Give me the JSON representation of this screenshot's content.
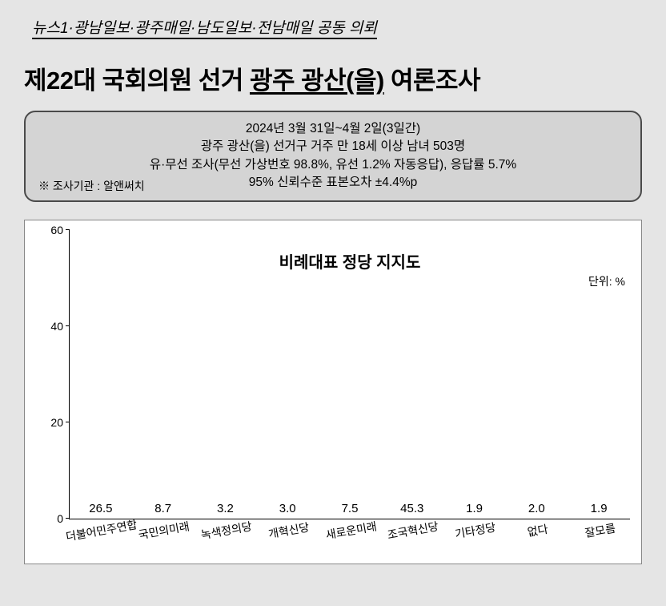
{
  "source_line": "뉴스1·광남일보·광주매일·남도일보·전남매일 공동 의뢰",
  "title_prefix": "제22대 국회의원 선거 ",
  "title_underline": "광주 광산(을)",
  "title_suffix": " 여론조사",
  "info": {
    "line1": "2024년 3월 31일~4월 2일(3일간)",
    "line2": "광주 광산(을) 선거구 거주 만 18세 이상 남녀 503명",
    "line3": "유·무선 조사(무선 가상번호 98.8%, 유선 1.2% 자동응답), 응답률 5.7%",
    "line4": "95% 신뢰수준 표본오차 ±4.4%p",
    "agency": "※ 조사기관 : 알앤써치"
  },
  "chart": {
    "type": "bar",
    "title": "비례대표 정당 지지도",
    "unit": "단위: %",
    "ylim": [
      0,
      60
    ],
    "yticks": [
      0,
      20,
      40,
      60
    ],
    "ytick_labels": {
      "0": "0",
      "20": "20",
      "40": "40",
      "60": "60"
    },
    "background_color": "#ffffff",
    "axis_color": "#000000",
    "title_fontsize": 20,
    "value_fontsize": 15,
    "label_fontsize": 14,
    "bar_width_pct": 3,
    "categories": [
      {
        "label": "더불어민주연합",
        "value": 26.5,
        "display": "26.5",
        "color": "#1663b3"
      },
      {
        "label": "국민의미래",
        "value": 8.7,
        "display": "8.7",
        "color": "#b31f1f"
      },
      {
        "label": "녹색정의당",
        "value": 3.2,
        "display": "3.2",
        "color": "#1f7a1f"
      },
      {
        "label": "개혁신당",
        "value": 3.0,
        "display": "3.0",
        "color": "#e0862f"
      },
      {
        "label": "새로운미래",
        "value": 7.5,
        "display": "7.5",
        "color": "#87cde8"
      },
      {
        "label": "조국혁신당",
        "value": 45.3,
        "display": "45.3",
        "color": "#4f94d4"
      },
      {
        "label": "기타정당",
        "value": 1.9,
        "display": "1.9",
        "color": "#2d2d2d"
      },
      {
        "label": "없다",
        "value": 2.0,
        "display": "2.0",
        "color": "#2d2d2d"
      },
      {
        "label": "잘모름",
        "value": 1.9,
        "display": "1.9",
        "color": "#2d2d2d"
      }
    ]
  }
}
